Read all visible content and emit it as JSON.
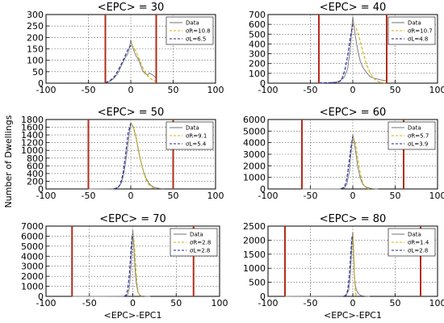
{
  "figure": {
    "ylabel": "Number of Dwellings",
    "xlabel": "<EPC>-EPC1"
  },
  "chart_data": [
    {
      "type": "line",
      "title": "<EPC> = 30",
      "xlim": [
        -100,
        100
      ],
      "ylim": [
        0,
        300
      ],
      "xticks": [
        -100,
        -50,
        0,
        50,
        100
      ],
      "yticks": [
        0,
        50,
        100,
        150,
        200,
        250,
        300
      ],
      "grid": true,
      "legend_position": "top-right",
      "vlines": [
        -30,
        30
      ],
      "series": [
        {
          "name": "Data",
          "color": "#7f7f7f",
          "style": "solid",
          "x": [
            -30,
            -25,
            -20,
            -15,
            -10,
            -8,
            -6,
            -4,
            -2,
            0,
            2,
            4,
            6,
            8,
            10,
            12,
            14,
            16,
            18,
            20,
            22,
            24,
            26,
            28,
            30
          ],
          "y": [
            2,
            8,
            20,
            45,
            85,
            100,
            115,
            125,
            145,
            190,
            160,
            140,
            120,
            110,
            95,
            75,
            55,
            45,
            40,
            35,
            45,
            40,
            35,
            30,
            20
          ]
        },
        {
          "name": "σR=10.8",
          "color": "#d4b106",
          "style": "dashed",
          "x": [
            0,
            3,
            6,
            9,
            12,
            15,
            18,
            21,
            24,
            27,
            30
          ],
          "y": [
            165,
            159,
            141,
            114,
            86,
            60,
            41,
            27,
            18,
            12,
            8
          ]
        },
        {
          "name": "σL=6.5",
          "color": "#1f1f9f",
          "style": "dashed",
          "x": [
            -30,
            -25,
            -20,
            -15,
            -12,
            -9,
            -6,
            -3,
            0
          ],
          "y": [
            2,
            10,
            25,
            55,
            78,
            100,
            125,
            150,
            165
          ]
        }
      ]
    },
    {
      "type": "line",
      "title": "<EPC> = 40",
      "xlim": [
        -100,
        100
      ],
      "ylim": [
        0,
        700
      ],
      "xticks": [
        -100,
        -50,
        0,
        50,
        100
      ],
      "yticks": [
        0,
        100,
        200,
        300,
        400,
        500,
        600,
        700
      ],
      "grid": true,
      "legend_position": "top-right",
      "vlines": [
        -40,
        40
      ],
      "series": [
        {
          "name": "Data",
          "color": "#7f7f7f",
          "style": "solid",
          "x": [
            -40,
            -30,
            -20,
            -15,
            -10,
            -6,
            -3,
            0,
            3,
            6,
            9,
            12,
            15,
            20,
            25,
            30,
            35,
            40
          ],
          "y": [
            2,
            4,
            10,
            25,
            60,
            150,
            350,
            680,
            480,
            330,
            220,
            160,
            120,
            70,
            50,
            40,
            30,
            25
          ]
        },
        {
          "name": "σR=10.7",
          "color": "#d4b106",
          "style": "dashed",
          "x": [
            0,
            4,
            8,
            12,
            16,
            20,
            24,
            28,
            32,
            36,
            40
          ],
          "y": [
            600,
            558,
            453,
            319,
            197,
            110,
            55,
            25,
            11,
            4,
            2
          ]
        },
        {
          "name": "σL=4.8",
          "color": "#1f1f9f",
          "style": "dashed",
          "x": [
            -40,
            -20,
            -15,
            -12,
            -9,
            -6,
            -3,
            0
          ],
          "y": [
            2,
            5,
            20,
            60,
            150,
            280,
            460,
            600
          ]
        }
      ]
    },
    {
      "type": "line",
      "title": "<EPC> = 50",
      "xlim": [
        -100,
        100
      ],
      "ylim": [
        0,
        1800
      ],
      "xticks": [
        -100,
        -50,
        0,
        50,
        100
      ],
      "yticks": [
        0,
        200,
        400,
        600,
        800,
        1000,
        1200,
        1400,
        1600,
        1800
      ],
      "grid": true,
      "legend_position": "top-right",
      "vlines": [
        -50,
        50
      ],
      "series": [
        {
          "name": "Data",
          "color": "#7f7f7f",
          "style": "solid",
          "x": [
            -50,
            -20,
            -15,
            -12,
            -9,
            -6,
            -3,
            0,
            3,
            6,
            9,
            12,
            15,
            18,
            21,
            24,
            27,
            30,
            35,
            40
          ],
          "y": [
            0,
            5,
            40,
            120,
            320,
            700,
            1200,
            1720,
            1600,
            1350,
            1000,
            700,
            450,
            280,
            160,
            90,
            50,
            25,
            10,
            5
          ]
        },
        {
          "name": "σR=9.1",
          "color": "#d4b106",
          "style": "dashed",
          "x": [
            0,
            3,
            6,
            9,
            12,
            15,
            18,
            21,
            24,
            27,
            30
          ],
          "y": [
            1700,
            1610,
            1370,
            1040,
            710,
            440,
            240,
            120,
            52,
            21,
            7
          ]
        },
        {
          "name": "σL=5.4",
          "color": "#1f1f9f",
          "style": "dashed",
          "x": [
            -20,
            -15,
            -12,
            -9,
            -6,
            -3,
            0
          ],
          "y": [
            2,
            35,
            140,
            425,
            920,
            1460,
            1700
          ]
        }
      ]
    },
    {
      "type": "line",
      "title": "<EPC> = 60",
      "xlim": [
        -100,
        100
      ],
      "ylim": [
        0,
        6000
      ],
      "xticks": [
        -100,
        -50,
        0,
        50,
        100
      ],
      "yticks": [
        0,
        1000,
        2000,
        3000,
        4000,
        5000,
        6000
      ],
      "grid": true,
      "legend_position": "top-right",
      "vlines": [
        -60,
        60
      ],
      "series": [
        {
          "name": "Data",
          "color": "#7f7f7f",
          "style": "solid",
          "x": [
            -60,
            -15,
            -10,
            -7,
            -4,
            -2,
            0,
            2,
            4,
            6,
            8,
            10,
            12,
            15,
            20,
            25,
            30
          ],
          "y": [
            0,
            10,
            80,
            400,
            1500,
            3200,
            4700,
            3900,
            2900,
            1900,
            1200,
            700,
            400,
            180,
            60,
            20,
            5
          ]
        },
        {
          "name": "σR=5.7",
          "color": "#d4b106",
          "style": "dashed",
          "x": [
            0,
            2,
            4,
            6,
            8,
            10,
            12,
            14,
            16,
            18,
            20
          ],
          "y": [
            4500,
            4230,
            3520,
            2590,
            1680,
            970,
            490,
            220,
            85,
            30,
            10
          ]
        },
        {
          "name": "σL=3.9",
          "color": "#1f1f9f",
          "style": "dashed",
          "x": [
            -14,
            -10,
            -8,
            -6,
            -4,
            -2,
            0
          ],
          "y": [
            5,
            170,
            560,
            1390,
            2540,
            3680,
            4500
          ]
        }
      ]
    },
    {
      "type": "line",
      "title": "<EPC> = 70",
      "xlim": [
        -100,
        100
      ],
      "ylim": [
        0,
        7000
      ],
      "xticks": [
        -100,
        -50,
        0,
        50,
        100
      ],
      "yticks": [
        0,
        1000,
        2000,
        3000,
        4000,
        5000,
        6000,
        7000
      ],
      "grid": true,
      "legend_position": "top-right",
      "vlines": [
        -70,
        70
      ],
      "series": [
        {
          "name": "Data",
          "color": "#7f7f7f",
          "style": "solid",
          "x": [
            -70,
            -10,
            -6,
            -4,
            -2,
            -1,
            0,
            1,
            2,
            3,
            4,
            6,
            8,
            10,
            15,
            20
          ],
          "y": [
            0,
            10,
            150,
            800,
            3000,
            4800,
            6600,
            5200,
            3600,
            2300,
            1300,
            400,
            120,
            40,
            5,
            0
          ]
        },
        {
          "name": "σR=2.8",
          "color": "#d4b106",
          "style": "dashed",
          "x": [
            0,
            1,
            2,
            3,
            4,
            5,
            6,
            7,
            8,
            9,
            10
          ],
          "y": [
            6200,
            5800,
            4830,
            3500,
            2200,
            1270,
            620,
            270,
            100,
            35,
            10
          ]
        },
        {
          "name": "σL=2.8",
          "color": "#1f1f9f",
          "style": "dashed",
          "x": [
            -10,
            -8,
            -6,
            -4,
            -3,
            -2,
            -1,
            0
          ],
          "y": [
            10,
            100,
            620,
            2200,
            3500,
            4830,
            5800,
            6200
          ]
        }
      ]
    },
    {
      "type": "line",
      "title": "<EPC> = 80",
      "xlim": [
        -100,
        100
      ],
      "ylim": [
        0,
        2500
      ],
      "xticks": [
        -100,
        -50,
        0,
        50,
        100
      ],
      "yticks": [
        0,
        500,
        1000,
        1500,
        2000,
        2500
      ],
      "grid": true,
      "legend_position": "top-right",
      "vlines": [
        -80,
        80
      ],
      "series": [
        {
          "name": "Data",
          "color": "#7f7f7f",
          "style": "solid",
          "x": [
            -80,
            -12,
            -8,
            -5,
            -3,
            -2,
            -1,
            0,
            1,
            2,
            3,
            4,
            6,
            8,
            10,
            15,
            20
          ],
          "y": [
            0,
            5,
            40,
            200,
            700,
            1300,
            1800,
            2300,
            1400,
            700,
            400,
            250,
            120,
            60,
            25,
            5,
            0
          ]
        },
        {
          "name": "σR=1.4",
          "color": "#d4b106",
          "style": "dashed",
          "x": [
            0,
            0.5,
            1,
            1.5,
            2,
            2.5,
            3,
            3.5,
            4,
            5
          ],
          "y": [
            2200,
            2080,
            1710,
            1250,
            800,
            450,
            220,
            100,
            37,
            4
          ]
        },
        {
          "name": "σL=2.8",
          "color": "#1f1f9f",
          "style": "dashed",
          "x": [
            -10,
            -8,
            -6,
            -4,
            -3,
            -2,
            -1,
            0
          ],
          "y": [
            4,
            35,
            220,
            790,
            1250,
            1710,
            2080,
            2200
          ]
        }
      ]
    }
  ]
}
